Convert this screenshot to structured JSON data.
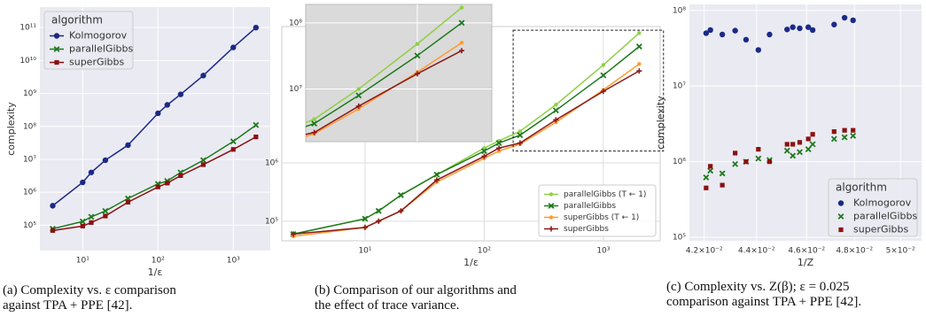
{
  "chart_data": [
    {
      "type": "line",
      "ylabel": "complexity",
      "xlabel": "1/ε",
      "log_x": true,
      "log_y": true,
      "grid": true,
      "facecolor": "#eaeaf2",
      "grid_color": "#ffffff",
      "xlim": [
        2.7,
        3100
      ],
      "ylim": [
        17000,
        420000000000.0
      ],
      "xticks": [
        {
          "value": 10,
          "label": "10¹"
        },
        {
          "value": 100,
          "label": "10²"
        },
        {
          "value": 1000,
          "label": "10³"
        }
      ],
      "yticks": [
        {
          "value": 100000.0,
          "label": "10⁵"
        },
        {
          "value": 1000000.0,
          "label": "10⁶"
        },
        {
          "value": 10000000.0,
          "label": "10⁷"
        },
        {
          "value": 100000000.0,
          "label": "10⁸"
        },
        {
          "value": 1000000000.0,
          "label": "10⁹"
        },
        {
          "value": 10000000000.0,
          "label": "10¹⁰"
        },
        {
          "value": 100000000000.0,
          "label": "10¹¹"
        }
      ],
      "legend": "upper left",
      "legend_title": "algorithm",
      "x": [
        4,
        10,
        13,
        20,
        40,
        100,
        133,
        200,
        400,
        1000,
        2000
      ],
      "series": [
        {
          "name": "Kolmogorov",
          "color": "#1b2a85",
          "marker": "circle",
          "values": [
            390000.0,
            2000000.0,
            4000000.0,
            9400000.0,
            27000000.0,
            250000000.0,
            450000000.0,
            940000000.0,
            3500000000.0,
            25000000000.0,
            100000000000.0
          ]
        },
        {
          "name": "parallelGibbs",
          "color": "#1d7a1d",
          "marker": "x",
          "values": [
            78000.0,
            130000.0,
            180000.0,
            270000.0,
            650000.0,
            1800000.0,
            2200000.0,
            4000000.0,
            9400000.0,
            35000000.0,
            110000000.0
          ]
        },
        {
          "name": "superGibbs",
          "color": "#8b1111",
          "marker": "square",
          "values": [
            69000.0,
            94000.0,
            120000.0,
            190000.0,
            500000.0,
            1450000.0,
            1900000.0,
            3200000.0,
            6900000.0,
            20000000.0,
            48000000.0
          ]
        }
      ],
      "caption": "(a) Complexity vs. ε comparison against TPA + PPE [42]."
    },
    {
      "type": "line",
      "xlabel": "1/ε",
      "log_x": true,
      "log_y": true,
      "grid": true,
      "facecolor": "#ffffff",
      "grid_color": "#dddddd",
      "xlim": [
        2,
        3000
      ],
      "ylim": [
        46000,
        220000000.0
      ],
      "xticks": [
        {
          "value": 10,
          "label": "10¹"
        },
        {
          "value": 100,
          "label": "10²"
        },
        {
          "value": 1000,
          "label": "10³"
        }
      ],
      "yticks": [
        {
          "value": 100000.0,
          "label": "10⁵"
        },
        {
          "value": 1000000.0,
          "label": "10⁶"
        }
      ],
      "legend": "lower right",
      "x": [
        2.5,
        10,
        13,
        20,
        40,
        100,
        133,
        200,
        400,
        1000,
        2000
      ],
      "series": [
        {
          "name": "parallelGibbs (T ← 1)",
          "color": "#8fcf45",
          "marker": "dot",
          "values": [
            60000.0,
            110000.0,
            150000.0,
            280000.0,
            630000.0,
            1800000.0,
            2400000.0,
            3500000.0,
            10000000.0,
            48000000.0,
            170000000.0
          ]
        },
        {
          "name": "parallelGibbs",
          "color": "#1d7a1d",
          "marker": "x",
          "values": [
            60000.0,
            110000.0,
            150000.0,
            280000.0,
            630000.0,
            1600000.0,
            2200000.0,
            3000000.0,
            8000000.0,
            32000000.0,
            100000000.0
          ]
        },
        {
          "name": "superGibbs (T ← 1)",
          "color": "#ff9a2e",
          "marker": "dot",
          "values": [
            55000.0,
            78000.0,
            100000.0,
            150000.0,
            470000.0,
            1200000.0,
            1600000.0,
            2100000.0,
            5000000.0,
            18000000.0,
            50000000.0
          ]
        },
        {
          "name": "superGibbs",
          "color": "#8b1a1a",
          "marker": "plus",
          "values": [
            60000.0,
            78000.0,
            100000.0,
            150000.0,
            510000.0,
            1300000.0,
            1800000.0,
            2200000.0,
            5500000.0,
            17000000.0,
            38000000.0
          ]
        }
      ],
      "inset": {
        "facecolor": "#dadada",
        "grid_color": "#ffffff",
        "xlim": [
          175,
          3200
        ],
        "ylim": [
          1600000.0,
          190000000.0
        ],
        "yticks": [
          {
            "value": 10000000.0,
            "label": "10⁷"
          },
          {
            "value": 100000000.0,
            "label": "10⁸"
          }
        ]
      },
      "caption": "(b) Comparison of our algorithms and the effect of trace variance."
    },
    {
      "type": "scatter",
      "ylabel": "complexity",
      "xlabel": "1/Z",
      "log_x": true,
      "log_y": true,
      "grid": true,
      "facecolor": "#eaeaf2",
      "grid_color": "#ffffff",
      "xlim": [
        0.04145,
        0.05095
      ],
      "ylim": [
        90000,
        120000000.0
      ],
      "xticks": [
        {
          "value": 0.042,
          "label": "4.2×10⁻²"
        },
        {
          "value": 0.044,
          "label": "4.4×10⁻²"
        },
        {
          "value": 0.046,
          "label": "4.6×10⁻²"
        },
        {
          "value": 0.048,
          "label": "4.8×10⁻²"
        },
        {
          "value": 0.05,
          "label": "5×10⁻²"
        }
      ],
      "yticks": [
        {
          "value": 100000.0,
          "label": "10⁵"
        },
        {
          "value": 1000000.0,
          "label": "10⁶"
        },
        {
          "value": 10000000.0,
          "label": "10⁷"
        },
        {
          "value": 100000000.0,
          "label": "10⁸"
        }
      ],
      "legend": "lower right",
      "legend_title": "algorithm",
      "x": [
        0.04207,
        0.04223,
        0.04268,
        0.04317,
        0.04359,
        0.04407,
        0.04451,
        0.04521,
        0.04544,
        0.04572,
        0.04607,
        0.04625,
        0.04714,
        0.04758,
        0.04794
      ],
      "series": [
        {
          "name": "Kolmogorov",
          "color": "#1b2a85",
          "marker": "circle",
          "values": [
            50000000.0,
            55000000.0,
            48000000.0,
            54000000.0,
            41000000.0,
            30000000.0,
            48000000.0,
            56000000.0,
            60000000.0,
            58000000.0,
            60000000.0,
            55000000.0,
            65000000.0,
            80000000.0,
            74000000.0
          ]
        },
        {
          "name": "parallelGibbs",
          "color": "#1d7a1d",
          "marker": "x",
          "values": [
            620000.0,
            760000.0,
            700000.0,
            930000.0,
            1000000.0,
            1100000.0,
            1050000.0,
            1400000.0,
            1200000.0,
            1340000.0,
            1460000.0,
            1700000.0,
            2000000.0,
            2100000.0,
            2200000.0
          ]
        },
        {
          "name": "superGibbs",
          "color": "#8b1111",
          "marker": "square",
          "values": [
            450000.0,
            870000.0,
            490000.0,
            1300000.0,
            1000000.0,
            1460000.0,
            1000000.0,
            1700000.0,
            1700000.0,
            1800000.0,
            2000000.0,
            2300000.0,
            2500000.0,
            2600000.0,
            2600000.0
          ]
        }
      ],
      "caption": "(c) Complexity vs. Z(β); ε = 0.025 comparison against TPA + PPE [42]."
    }
  ]
}
